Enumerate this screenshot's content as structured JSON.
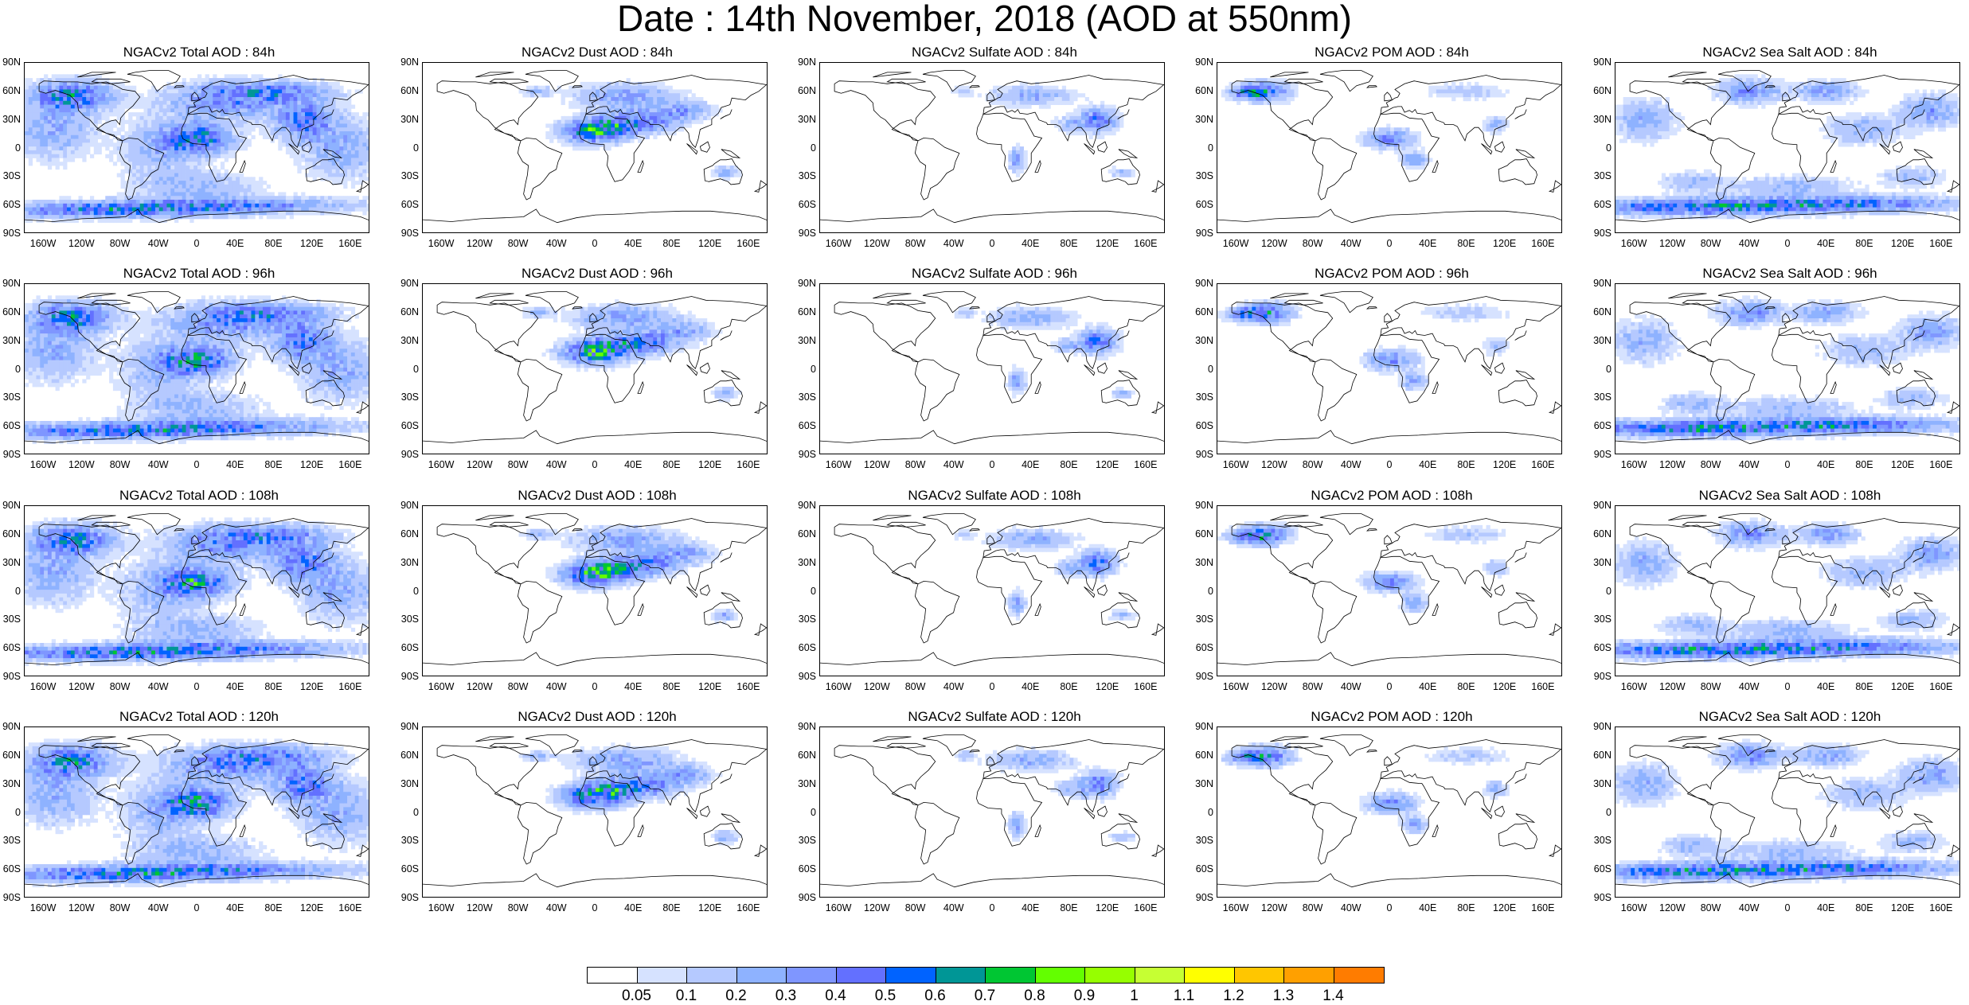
{
  "title": "Date : 14th November, 2018 (AOD at 550nm)",
  "lat_labels": [
    "90N",
    "60N",
    "30N",
    "0",
    "30S",
    "60S",
    "90S"
  ],
  "lon_labels": [
    "160W",
    "120W",
    "80W",
    "40W",
    "0",
    "40E",
    "80E",
    "120E",
    "160E"
  ],
  "panels": [
    {
      "title": "NGACv2 Total AOD : 84h",
      "species": "total",
      "lead": "84h"
    },
    {
      "title": "NGACv2 Dust AOD : 84h",
      "species": "dust",
      "lead": "84h"
    },
    {
      "title": "NGACv2 Sulfate AOD : 84h",
      "species": "sulfate",
      "lead": "84h"
    },
    {
      "title": "NGACv2 POM AOD : 84h",
      "species": "pom",
      "lead": "84h"
    },
    {
      "title": "NGACv2 Sea Salt AOD : 84h",
      "species": "seasalt",
      "lead": "84h"
    },
    {
      "title": "NGACv2 Total AOD : 96h",
      "species": "total",
      "lead": "96h"
    },
    {
      "title": "NGACv2 Dust AOD : 96h",
      "species": "dust",
      "lead": "96h"
    },
    {
      "title": "NGACv2 Sulfate AOD : 96h",
      "species": "sulfate",
      "lead": "96h"
    },
    {
      "title": "NGACv2 POM AOD : 96h",
      "species": "pom",
      "lead": "96h"
    },
    {
      "title": "NGACv2 Sea Salt AOD : 96h",
      "species": "seasalt",
      "lead": "96h"
    },
    {
      "title": "NGACv2 Total AOD : 108h",
      "species": "total",
      "lead": "108h"
    },
    {
      "title": "NGACv2 Dust AOD : 108h",
      "species": "dust",
      "lead": "108h"
    },
    {
      "title": "NGACv2 Sulfate AOD : 108h",
      "species": "sulfate",
      "lead": "108h"
    },
    {
      "title": "NGACv2 POM AOD : 108h",
      "species": "pom",
      "lead": "108h"
    },
    {
      "title": "NGACv2 Sea Salt AOD : 108h",
      "species": "seasalt",
      "lead": "108h"
    },
    {
      "title": "NGACv2 Total AOD : 120h",
      "species": "total",
      "lead": "120h"
    },
    {
      "title": "NGACv2 Dust AOD : 120h",
      "species": "dust",
      "lead": "120h"
    },
    {
      "title": "NGACv2 Sulfate AOD : 120h",
      "species": "sulfate",
      "lead": "120h"
    },
    {
      "title": "NGACv2 POM AOD : 120h",
      "species": "pom",
      "lead": "120h"
    },
    {
      "title": "NGACv2 Sea Salt  AOD : 120h",
      "species": "seasalt",
      "lead": "120h"
    }
  ],
  "colorbar": {
    "labels": [
      "0.05",
      "0.1",
      "0.2",
      "0.3",
      "0.4",
      "0.5",
      "0.6",
      "0.7",
      "0.8",
      "0.9",
      "1",
      "1.1",
      "1.2",
      "1.3",
      "1.4"
    ],
    "colors": [
      "#ffffff",
      "#d6e2ff",
      "#b5c9ff",
      "#8eb2ff",
      "#7f96ff",
      "#6370ff",
      "#0063ff",
      "#009696",
      "#00c633",
      "#63ff00",
      "#96ff00",
      "#c6ff33",
      "#ffff00",
      "#ffc600",
      "#ffa000",
      "#ff7c00",
      "#ff1900"
    ]
  }
}
